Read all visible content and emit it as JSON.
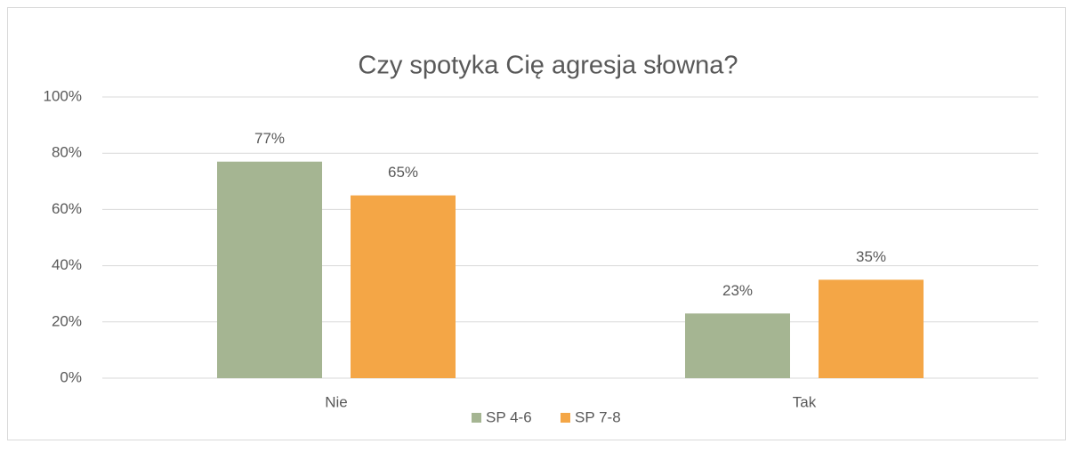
{
  "chart_data": {
    "type": "bar",
    "title": "Czy spotyka Cię agresja słowna?",
    "categories": [
      "Nie",
      "Tak"
    ],
    "series": [
      {
        "name": "SP 4-6",
        "color": "#a5b592",
        "values": [
          77,
          23
        ],
        "value_labels": [
          "77%",
          "23%"
        ]
      },
      {
        "name": "SP 7-8",
        "color": "#f4a646",
        "values": [
          65,
          35
        ],
        "value_labels": [
          "65%",
          "35%"
        ]
      }
    ],
    "ylim": [
      0,
      100
    ],
    "yticks": [
      {
        "value": 0,
        "label": "0%"
      },
      {
        "value": 20,
        "label": "20%"
      },
      {
        "value": 40,
        "label": "40%"
      },
      {
        "value": 60,
        "label": "60%"
      },
      {
        "value": 80,
        "label": "80%"
      },
      {
        "value": 100,
        "label": "100%"
      }
    ],
    "grid": true,
    "legend": "bottom"
  }
}
